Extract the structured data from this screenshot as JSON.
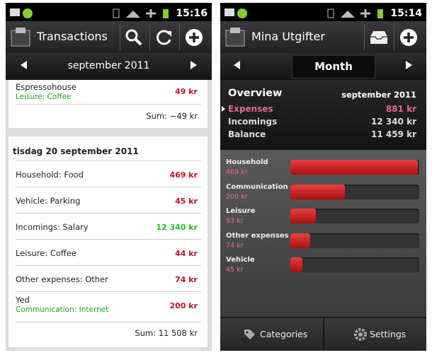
{
  "left": {
    "status_time": "15:16",
    "title": "Transactions",
    "month": "september 2011",
    "partial": {
      "name": "Espressohouse",
      "category": "Leisure: Coffee",
      "amount": "49 kr",
      "sum": "Sum: −49 kr"
    },
    "day": {
      "date": "tisdag 20 september 2011",
      "items": [
        {
          "name": "Household: Food",
          "amount": "469 kr",
          "color": "#c0142a"
        },
        {
          "name": "Vehicle: Parking",
          "amount": "45 kr",
          "color": "#c0142a"
        },
        {
          "name": "Incomings: Salary",
          "amount": "12 340 kr",
          "color": "#22bb22"
        },
        {
          "name": "Leisure: Coffee",
          "amount": "44 kr",
          "color": "#c0142a"
        },
        {
          "name": "Other expenses: Other",
          "amount": "74 kr",
          "color": "#c0142a"
        },
        {
          "name": "Yed",
          "category": "Communication: Internet",
          "amount": "200 kr",
          "color": "#c0142a"
        }
      ],
      "sum": "Sum: 11 508 kr"
    }
  },
  "right": {
    "status_time": "15:14",
    "title": "Mina Utgifter",
    "period": "Month",
    "overview": {
      "title": "Overview",
      "month": "september 2011",
      "rows": [
        {
          "label": "Expenses",
          "value": "881 kr"
        },
        {
          "label": "Incomings",
          "value": "12 340 kr"
        },
        {
          "label": "Balance",
          "value": "11 459 kr"
        }
      ]
    },
    "categories": [
      {
        "name": "Household",
        "value": 469,
        "label": "469 kr"
      },
      {
        "name": "Communication",
        "value": 200,
        "label": "200 kr"
      },
      {
        "name": "Leisure",
        "value": 93,
        "label": "93 kr"
      },
      {
        "name": "Other expenses",
        "value": 74,
        "label": "74 kr"
      },
      {
        "name": "Vehicle",
        "value": 45,
        "label": "45 kr"
      }
    ],
    "tabs": [
      "Categories",
      "Settings"
    ]
  }
}
